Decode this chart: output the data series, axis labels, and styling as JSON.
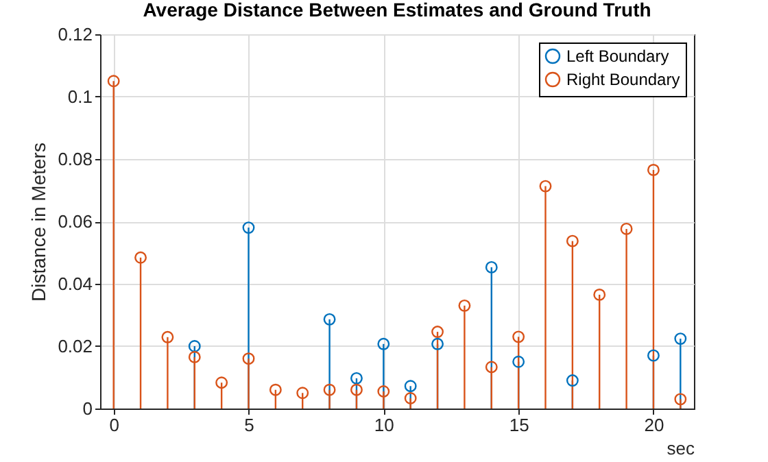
{
  "chart_data": {
    "type": "lollipop",
    "title": "Average Distance Between Estimates and Ground Truth",
    "xlabel": "sec",
    "ylabel": "Distance in Meters",
    "x": [
      0,
      1,
      2,
      3,
      4,
      5,
      6,
      7,
      8,
      9,
      10,
      11,
      12,
      13,
      14,
      15,
      16,
      17,
      18,
      19,
      20,
      21
    ],
    "series": [
      {
        "name": "Left Boundary",
        "color": "#0072bd",
        "values": [
          null,
          null,
          null,
          0.02,
          null,
          0.058,
          null,
          null,
          0.0286,
          0.0097,
          0.0207,
          0.0072,
          0.0207,
          null,
          0.0453,
          0.015,
          null,
          0.009,
          null,
          null,
          0.017,
          0.0224
        ]
      },
      {
        "name": "Right Boundary",
        "color": "#d95319",
        "values": [
          0.105,
          0.0484,
          0.0229,
          0.0165,
          0.0083,
          0.016,
          0.006,
          0.005,
          0.006,
          0.006,
          0.0055,
          0.0033,
          0.0246,
          0.033,
          0.0133,
          0.023,
          0.0713,
          0.0537,
          0.0365,
          0.0576,
          0.0765,
          0.003
        ]
      }
    ],
    "xlim": [
      -0.5,
      21.5
    ],
    "xticks": [
      0,
      5,
      10,
      15,
      20
    ],
    "ylim": [
      0,
      0.12
    ],
    "yticks": [
      0,
      0.02,
      0.04,
      0.06,
      0.08,
      0.1,
      0.12
    ],
    "grid": true,
    "legend": "top right",
    "marker": "circle"
  }
}
